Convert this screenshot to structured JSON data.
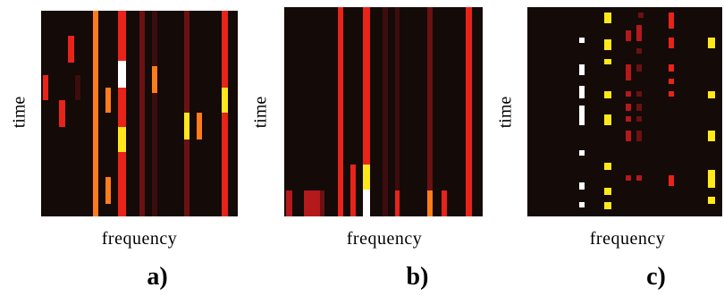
{
  "colors": {
    "background": "#140a08",
    "white": "#ffffff",
    "yellow": "#ffe81a",
    "orange": "#ff7c1a",
    "red": "#e8231a",
    "crimson": "#b4191c",
    "dark_red": "#6b1112",
    "maroon": "#3d0c0c"
  },
  "panels": [
    {
      "id": "a",
      "time_label": "time",
      "frequency_label": "frequency",
      "panel_label": "a)"
    },
    {
      "id": "b",
      "time_label": "time",
      "frequency_label": "frequency",
      "panel_label": "b)"
    },
    {
      "id": "c",
      "time_label": "time",
      "frequency_label": "frequency",
      "panel_label": "c)"
    }
  ]
}
